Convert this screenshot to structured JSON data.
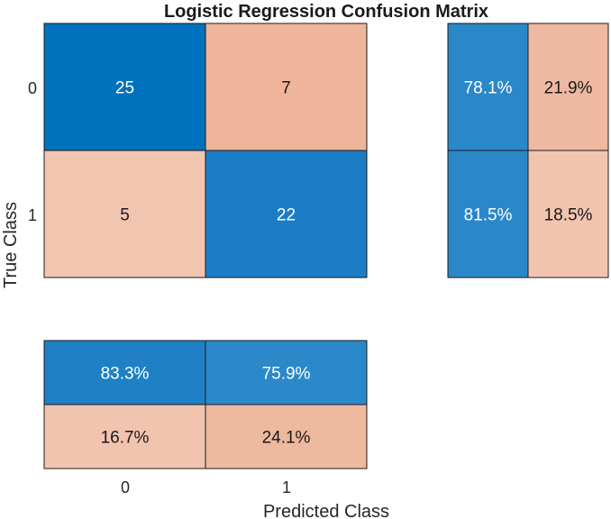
{
  "chart_data": {
    "type": "heatmap",
    "title": "Logistic Regression Confusion Matrix",
    "xlabel": "Predicted Class",
    "ylabel": "True Class",
    "x_categories": [
      "0",
      "1"
    ],
    "y_categories": [
      "0",
      "1"
    ],
    "matrix": [
      [
        25,
        7
      ],
      [
        5,
        22
      ]
    ],
    "row_summary": [
      [
        "78.1%",
        "21.9%"
      ],
      [
        "81.5%",
        "18.5%"
      ]
    ],
    "column_summary": [
      [
        "83.3%",
        "75.9%"
      ],
      [
        "16.7%",
        "24.1%"
      ]
    ],
    "colors": {
      "diagonal_high": "#0072bd",
      "diagonal_low": "#1c7dc7",
      "off_diagonal_high": "#efb59a",
      "off_diagonal_low": "#f2c5b0",
      "row_correct": "#2a88c9",
      "row_incorrect_high": "#efb9a1",
      "row_incorrect_low": "#f2c4b0",
      "col_correct_high": "#1f80c5",
      "col_correct_low": "#2b89c9",
      "col_incorrect_low": "#f2c4b0",
      "col_incorrect_high": "#edb99f"
    }
  }
}
